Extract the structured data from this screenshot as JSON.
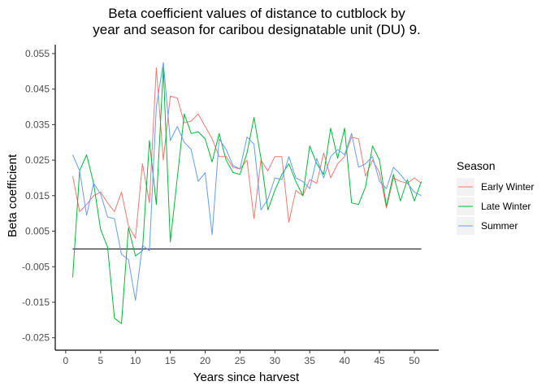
{
  "chart_data": {
    "type": "line",
    "title_lines": [
      "Beta coefficient values of distance to cutblock by",
      "year and season for caribou designatable unit (DU) 9."
    ],
    "xlabel": "Years since harvest",
    "ylabel": "Beta coefficient",
    "xlim": [
      -1.5,
      53.5
    ],
    "ylim": [
      -0.0285,
      0.0575
    ],
    "x_ticks": [
      0,
      5,
      10,
      15,
      20,
      25,
      30,
      35,
      40,
      45,
      50
    ],
    "y_ticks": [
      -0.025,
      -0.015,
      -0.005,
      0.005,
      0.015,
      0.025,
      0.035,
      0.045,
      0.055
    ],
    "y_tick_labels": [
      "-0.025",
      "-0.015",
      "-0.005",
      "0.005",
      "0.015",
      "0.025",
      "0.035",
      "0.045",
      "0.055"
    ],
    "grid": false,
    "reference_line": {
      "y": 0.0,
      "x_from": 1,
      "x_to": 51,
      "color": "#000000"
    },
    "x": [
      1,
      2,
      3,
      4,
      5,
      6,
      7,
      8,
      9,
      10,
      11,
      12,
      13,
      14,
      15,
      16,
      17,
      18,
      19,
      20,
      21,
      22,
      23,
      24,
      25,
      26,
      27,
      28,
      29,
      30,
      31,
      32,
      33,
      34,
      35,
      36,
      37,
      38,
      39,
      40,
      41,
      42,
      43,
      44,
      45,
      46,
      47,
      48,
      49,
      50,
      51
    ],
    "series": [
      {
        "name": "Early Winter",
        "color": "#F8766D",
        "values": [
          0.0205,
          0.0105,
          0.0125,
          0.015,
          0.016,
          0.013,
          0.0105,
          0.016,
          0.0065,
          0.003,
          0.024,
          0.013,
          0.051,
          0.025,
          0.043,
          0.0425,
          0.0355,
          0.036,
          0.038,
          0.0345,
          0.031,
          0.026,
          0.026,
          0.023,
          0.0225,
          0.025,
          0.0085,
          0.025,
          0.022,
          0.026,
          0.026,
          0.0075,
          0.0165,
          0.015,
          0.0195,
          0.0185,
          0.027,
          0.02,
          0.024,
          0.026,
          0.0315,
          0.031,
          0.0205,
          0.025,
          0.0215,
          0.0115,
          0.02,
          0.019,
          0.0185,
          0.02,
          0.0185
        ]
      },
      {
        "name": "Late Winter",
        "color": "#00BA38",
        "values": [
          -0.008,
          0.022,
          0.0265,
          0.0185,
          0.0055,
          0.0005,
          -0.0195,
          -0.021,
          0.006,
          -0.002,
          -0.0005,
          0.0305,
          0.0125,
          0.051,
          0.002,
          0.02,
          0.038,
          0.0325,
          0.033,
          0.031,
          0.0245,
          0.0325,
          0.025,
          0.0215,
          0.021,
          0.027,
          0.037,
          0.0255,
          0.011,
          0.0165,
          0.021,
          0.024,
          0.019,
          0.015,
          0.029,
          0.024,
          0.021,
          0.034,
          0.0255,
          0.034,
          0.013,
          0.0125,
          0.0175,
          0.029,
          0.025,
          0.012,
          0.021,
          0.0135,
          0.0195,
          0.0135,
          0.019
        ]
      },
      {
        "name": "Summer",
        "color": "#619CFF",
        "values": [
          0.0265,
          0.022,
          0.0095,
          0.0185,
          0.0155,
          0.009,
          0.0085,
          -0.0015,
          -0.003,
          -0.0145,
          0.001,
          -0.0005,
          0.04,
          0.0525,
          0.0305,
          0.0345,
          0.03,
          0.028,
          0.019,
          0.0215,
          0.004,
          0.031,
          0.028,
          0.0235,
          0.0225,
          0.0315,
          0.0295,
          0.011,
          0.014,
          0.02,
          0.0195,
          0.026,
          0.02,
          0.019,
          0.017,
          0.0255,
          0.02,
          0.026,
          0.028,
          0.0265,
          0.0325,
          0.023,
          0.024,
          0.026,
          0.019,
          0.017,
          0.023,
          0.021,
          0.0185,
          0.016,
          0.015
        ]
      }
    ],
    "legend": {
      "title": "Season",
      "position": "right",
      "items": [
        "Early Winter",
        "Late Winter",
        "Summer"
      ]
    }
  }
}
